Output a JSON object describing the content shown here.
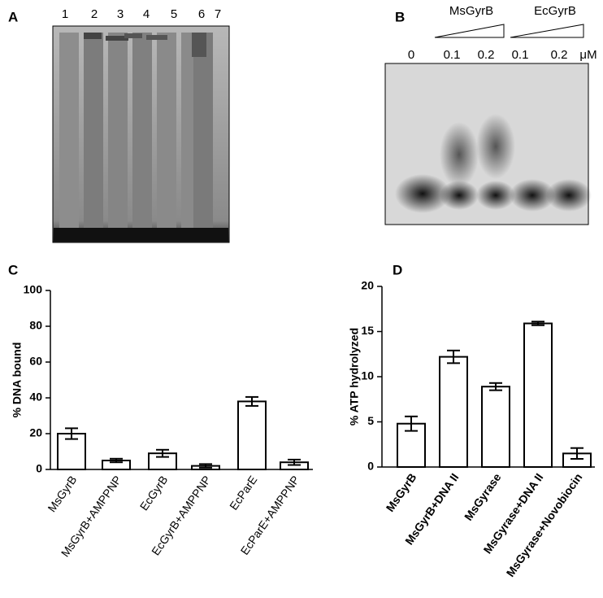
{
  "gel_a": {
    "label": "A",
    "lanes": [
      "1",
      "2",
      "3",
      "4",
      "5",
      "6",
      "7"
    ]
  },
  "gel_b": {
    "label": "B",
    "groups": [
      "MsGyrB",
      "EcGyrB"
    ],
    "lanes": [
      "0",
      "0.1",
      "0.2",
      "0.1",
      "0.2"
    ],
    "unit": "μM"
  },
  "chart_data": [
    {
      "type": "bar",
      "panel": "C",
      "ylabel": "% DNA bound",
      "categories": [
        "MsGyrB",
        "MsGyrB+AMPPNP",
        "EcGyrB",
        "EcGyrB+AMPPNP",
        "EcParE",
        "EcParE+AMPPNP"
      ],
      "values": [
        20,
        5,
        9,
        2,
        38,
        4
      ],
      "errors": [
        3,
        1,
        2,
        1,
        2.5,
        1.5
      ],
      "ylim": [
        0,
        100
      ],
      "yticks": [
        0,
        20,
        40,
        60,
        80,
        100
      ],
      "color": "#ffffff"
    },
    {
      "type": "bar",
      "panel": "D",
      "ylabel": "% ATP hydrolyzed",
      "categories": [
        "MsGyrB",
        "MsGyrB+DNA II",
        "MsGyrase",
        "MsGyrase+DNA II",
        "MsGyrase+Novobiocin"
      ],
      "values": [
        4.8,
        12.2,
        8.9,
        15.9,
        1.5
      ],
      "errors": [
        0.8,
        0.7,
        0.4,
        0.2,
        0.6
      ],
      "ylim": [
        0,
        20
      ],
      "yticks": [
        0,
        5,
        10,
        15,
        20
      ],
      "color": "#ffffff"
    }
  ]
}
